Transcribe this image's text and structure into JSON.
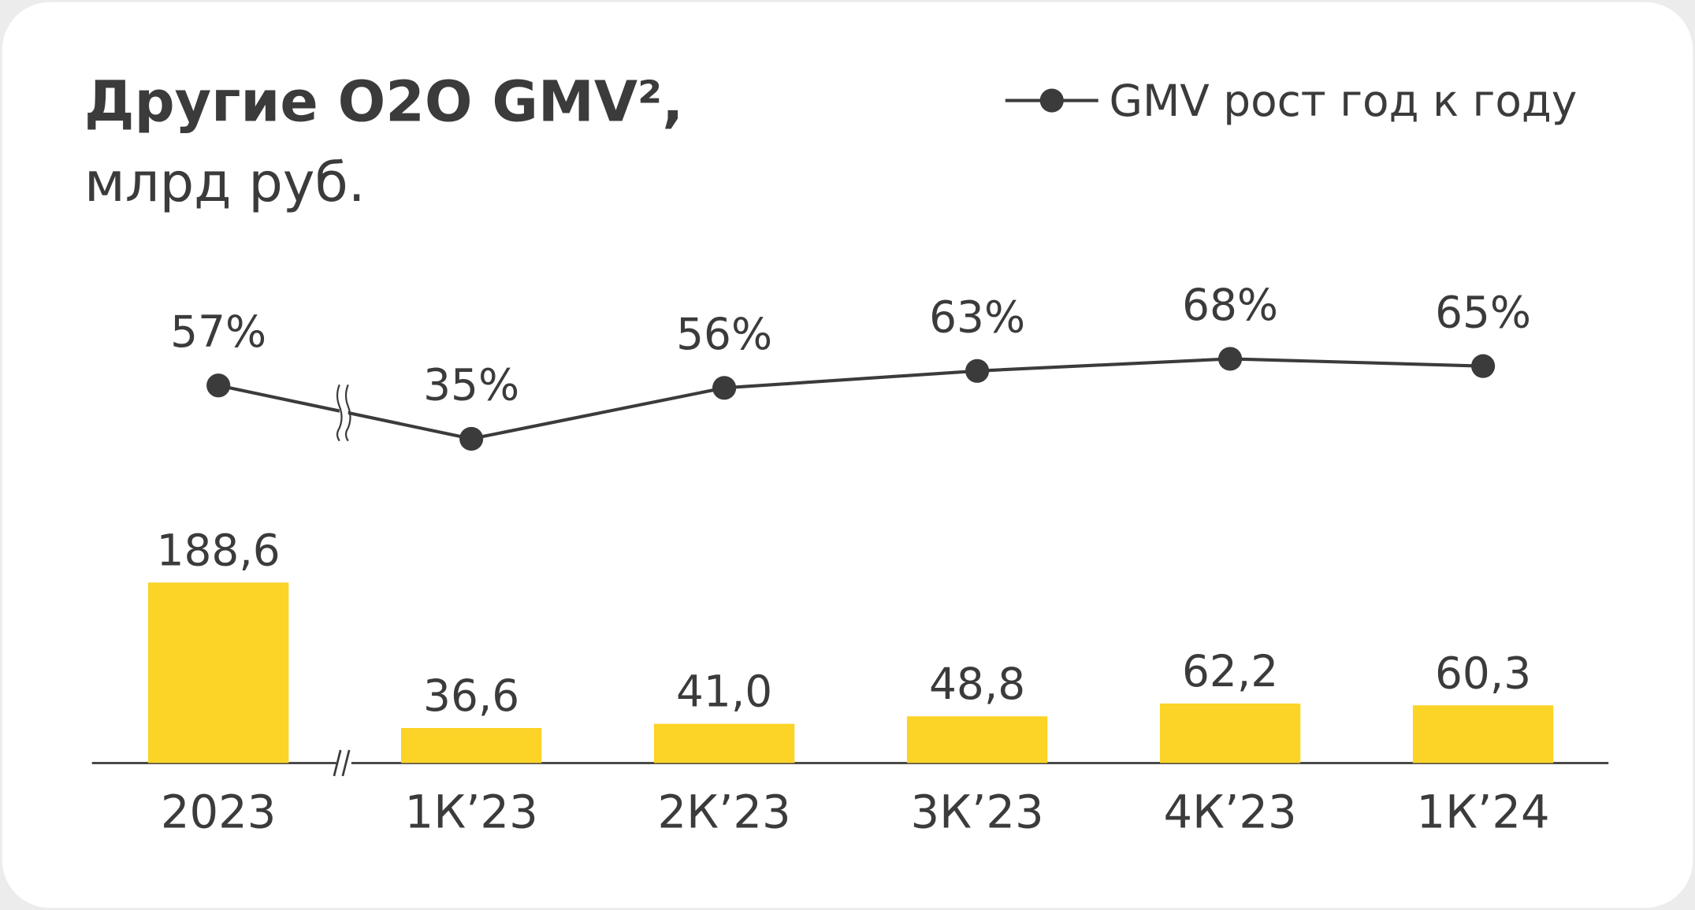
{
  "chart_data": {
    "type": "bar",
    "title": "Другие O2O GMV²,",
    "subtitle": "млрд руб.",
    "categories": [
      "2023",
      "1К’23",
      "2К’23",
      "3К’23",
      "4К’23",
      "1К’24"
    ],
    "series": [
      {
        "type": "bar",
        "color": "#fcd327",
        "values": [
          188.6,
          36.6,
          41.0,
          48.8,
          62.2,
          60.3
        ],
        "value_labels": [
          "188,6",
          "36,6",
          "41,0",
          "48,8",
          "62,2",
          "60,3"
        ]
      },
      {
        "type": "line",
        "name": "GMV рост год к году",
        "color": "#3b3b3b",
        "values": [
          57,
          35,
          56,
          63,
          68,
          65
        ],
        "value_labels": [
          "57%",
          "35%",
          "56%",
          "63%",
          "68%",
          "65%"
        ]
      }
    ],
    "legend": "top-right"
  }
}
